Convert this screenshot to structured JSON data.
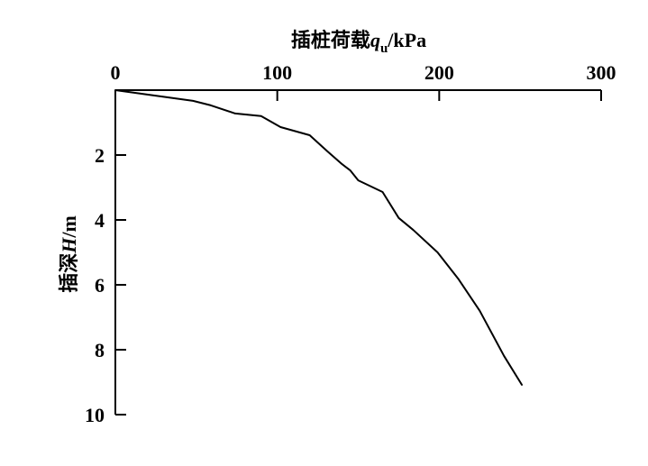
{
  "chart_data": {
    "type": "line",
    "xlabel": {
      "text": "插桩荷载",
      "var": "q",
      "sub": "u",
      "unit": "/kPa"
    },
    "ylabel": {
      "text": "插深",
      "var": "H",
      "unit": "/m"
    },
    "x_axis_position": "top",
    "y_inverted": true,
    "grid": false,
    "xlim": [
      0,
      300
    ],
    "ylim": [
      0,
      10
    ],
    "x_ticks": [
      "0",
      "100",
      "200",
      "300"
    ],
    "y_ticks": [
      "2",
      "4",
      "6",
      "8",
      "10"
    ],
    "line_color": "#000000",
    "series": [
      {
        "x": [
          0,
          48,
          59,
          74,
          90,
          102,
          120,
          131,
          140,
          145,
          150,
          165,
          175,
          184,
          199,
          212,
          225,
          240,
          251
        ],
        "y": [
          0.0,
          0.33,
          0.47,
          0.72,
          0.8,
          1.14,
          1.39,
          1.89,
          2.28,
          2.47,
          2.78,
          3.14,
          3.94,
          4.31,
          5.0,
          5.83,
          6.8,
          8.19,
          9.08
        ]
      }
    ]
  }
}
